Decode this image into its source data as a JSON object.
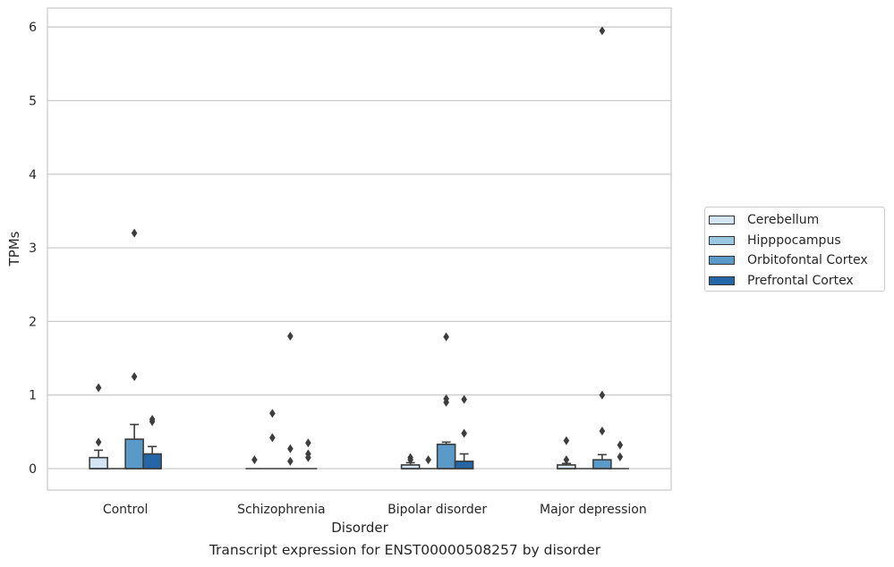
{
  "chart_data": {
    "type": "box",
    "caption": "Transcript expression for ENST00000508257 by disorder",
    "xlabel": "Disorder",
    "ylabel": "TPMs",
    "ylim": [
      -0.3,
      6.25
    ],
    "yticks": [
      0,
      1,
      2,
      3,
      4,
      5,
      6
    ],
    "grid": true,
    "legend_position": "right",
    "categories": [
      "Control",
      "Schizophrenia",
      "Bipolar disorder",
      "Major depression"
    ],
    "series": [
      {
        "name": "Cerebellum",
        "color": "#d4e4f2",
        "boxes": [
          {
            "q1": 0.0,
            "median": 0.0,
            "q3": 0.15,
            "whisker_low": 0.0,
            "whisker_high": 0.25,
            "outliers": [
              1.1,
              0.36
            ]
          },
          {
            "q1": 0.0,
            "median": 0.0,
            "q3": 0.0,
            "whisker_low": 0.0,
            "whisker_high": 0.0,
            "outliers": [
              0.12
            ]
          },
          {
            "q1": 0.0,
            "median": 0.0,
            "q3": 0.05,
            "whisker_low": 0.0,
            "whisker_high": 0.08,
            "outliers": [
              0.15,
              0.12
            ]
          },
          {
            "q1": 0.0,
            "median": 0.0,
            "q3": 0.05,
            "whisker_low": 0.0,
            "whisker_high": 0.07,
            "outliers": [
              0.38,
              0.12
            ]
          }
        ]
      },
      {
        "name": "Hipppocampus",
        "color": "#9ac8e0",
        "boxes": [
          {
            "q1": 0.0,
            "median": 0.0,
            "q3": 0.0,
            "whisker_low": 0.0,
            "whisker_high": 0.0,
            "outliers": []
          },
          {
            "q1": 0.0,
            "median": 0.0,
            "q3": 0.0,
            "whisker_low": 0.0,
            "whisker_high": 0.0,
            "outliers": [
              0.75,
              0.42
            ]
          },
          {
            "q1": 0.0,
            "median": 0.0,
            "q3": 0.0,
            "whisker_low": 0.0,
            "whisker_high": 0.0,
            "outliers": [
              0.12
            ]
          },
          {
            "q1": 0.0,
            "median": 0.0,
            "q3": 0.0,
            "whisker_low": 0.0,
            "whisker_high": 0.0,
            "outliers": []
          }
        ]
      },
      {
        "name": "Orbitofontal Cortex",
        "color": "#5a9ac9",
        "boxes": [
          {
            "q1": 0.0,
            "median": 0.0,
            "q3": 0.4,
            "whisker_low": 0.0,
            "whisker_high": 0.6,
            "outliers": [
              3.2,
              1.25
            ]
          },
          {
            "q1": 0.0,
            "median": 0.0,
            "q3": 0.0,
            "whisker_low": 0.0,
            "whisker_high": 0.0,
            "outliers": [
              1.8,
              0.27,
              0.1
            ]
          },
          {
            "q1": 0.0,
            "median": 0.0,
            "q3": 0.33,
            "whisker_low": 0.0,
            "whisker_high": 0.36,
            "outliers": [
              1.79,
              0.95,
              0.9
            ]
          },
          {
            "q1": 0.0,
            "median": 0.0,
            "q3": 0.12,
            "whisker_low": 0.0,
            "whisker_high": 0.19,
            "outliers": [
              5.95,
              1.0,
              0.51
            ]
          }
        ]
      },
      {
        "name": "Prefrontal Cortex",
        "color": "#2466a8",
        "boxes": [
          {
            "q1": 0.0,
            "median": 0.0,
            "q3": 0.2,
            "whisker_low": 0.0,
            "whisker_high": 0.3,
            "outliers": [
              0.67,
              0.64
            ]
          },
          {
            "q1": 0.0,
            "median": 0.0,
            "q3": 0.0,
            "whisker_low": 0.0,
            "whisker_high": 0.0,
            "outliers": [
              0.35,
              0.2,
              0.15
            ]
          },
          {
            "q1": 0.0,
            "median": 0.0,
            "q3": 0.1,
            "whisker_low": 0.0,
            "whisker_high": 0.2,
            "outliers": [
              0.94,
              0.48
            ]
          },
          {
            "q1": 0.0,
            "median": 0.0,
            "q3": 0.0,
            "whisker_low": 0.0,
            "whisker_high": 0.0,
            "outliers": [
              0.32,
              0.16
            ]
          }
        ]
      }
    ]
  }
}
